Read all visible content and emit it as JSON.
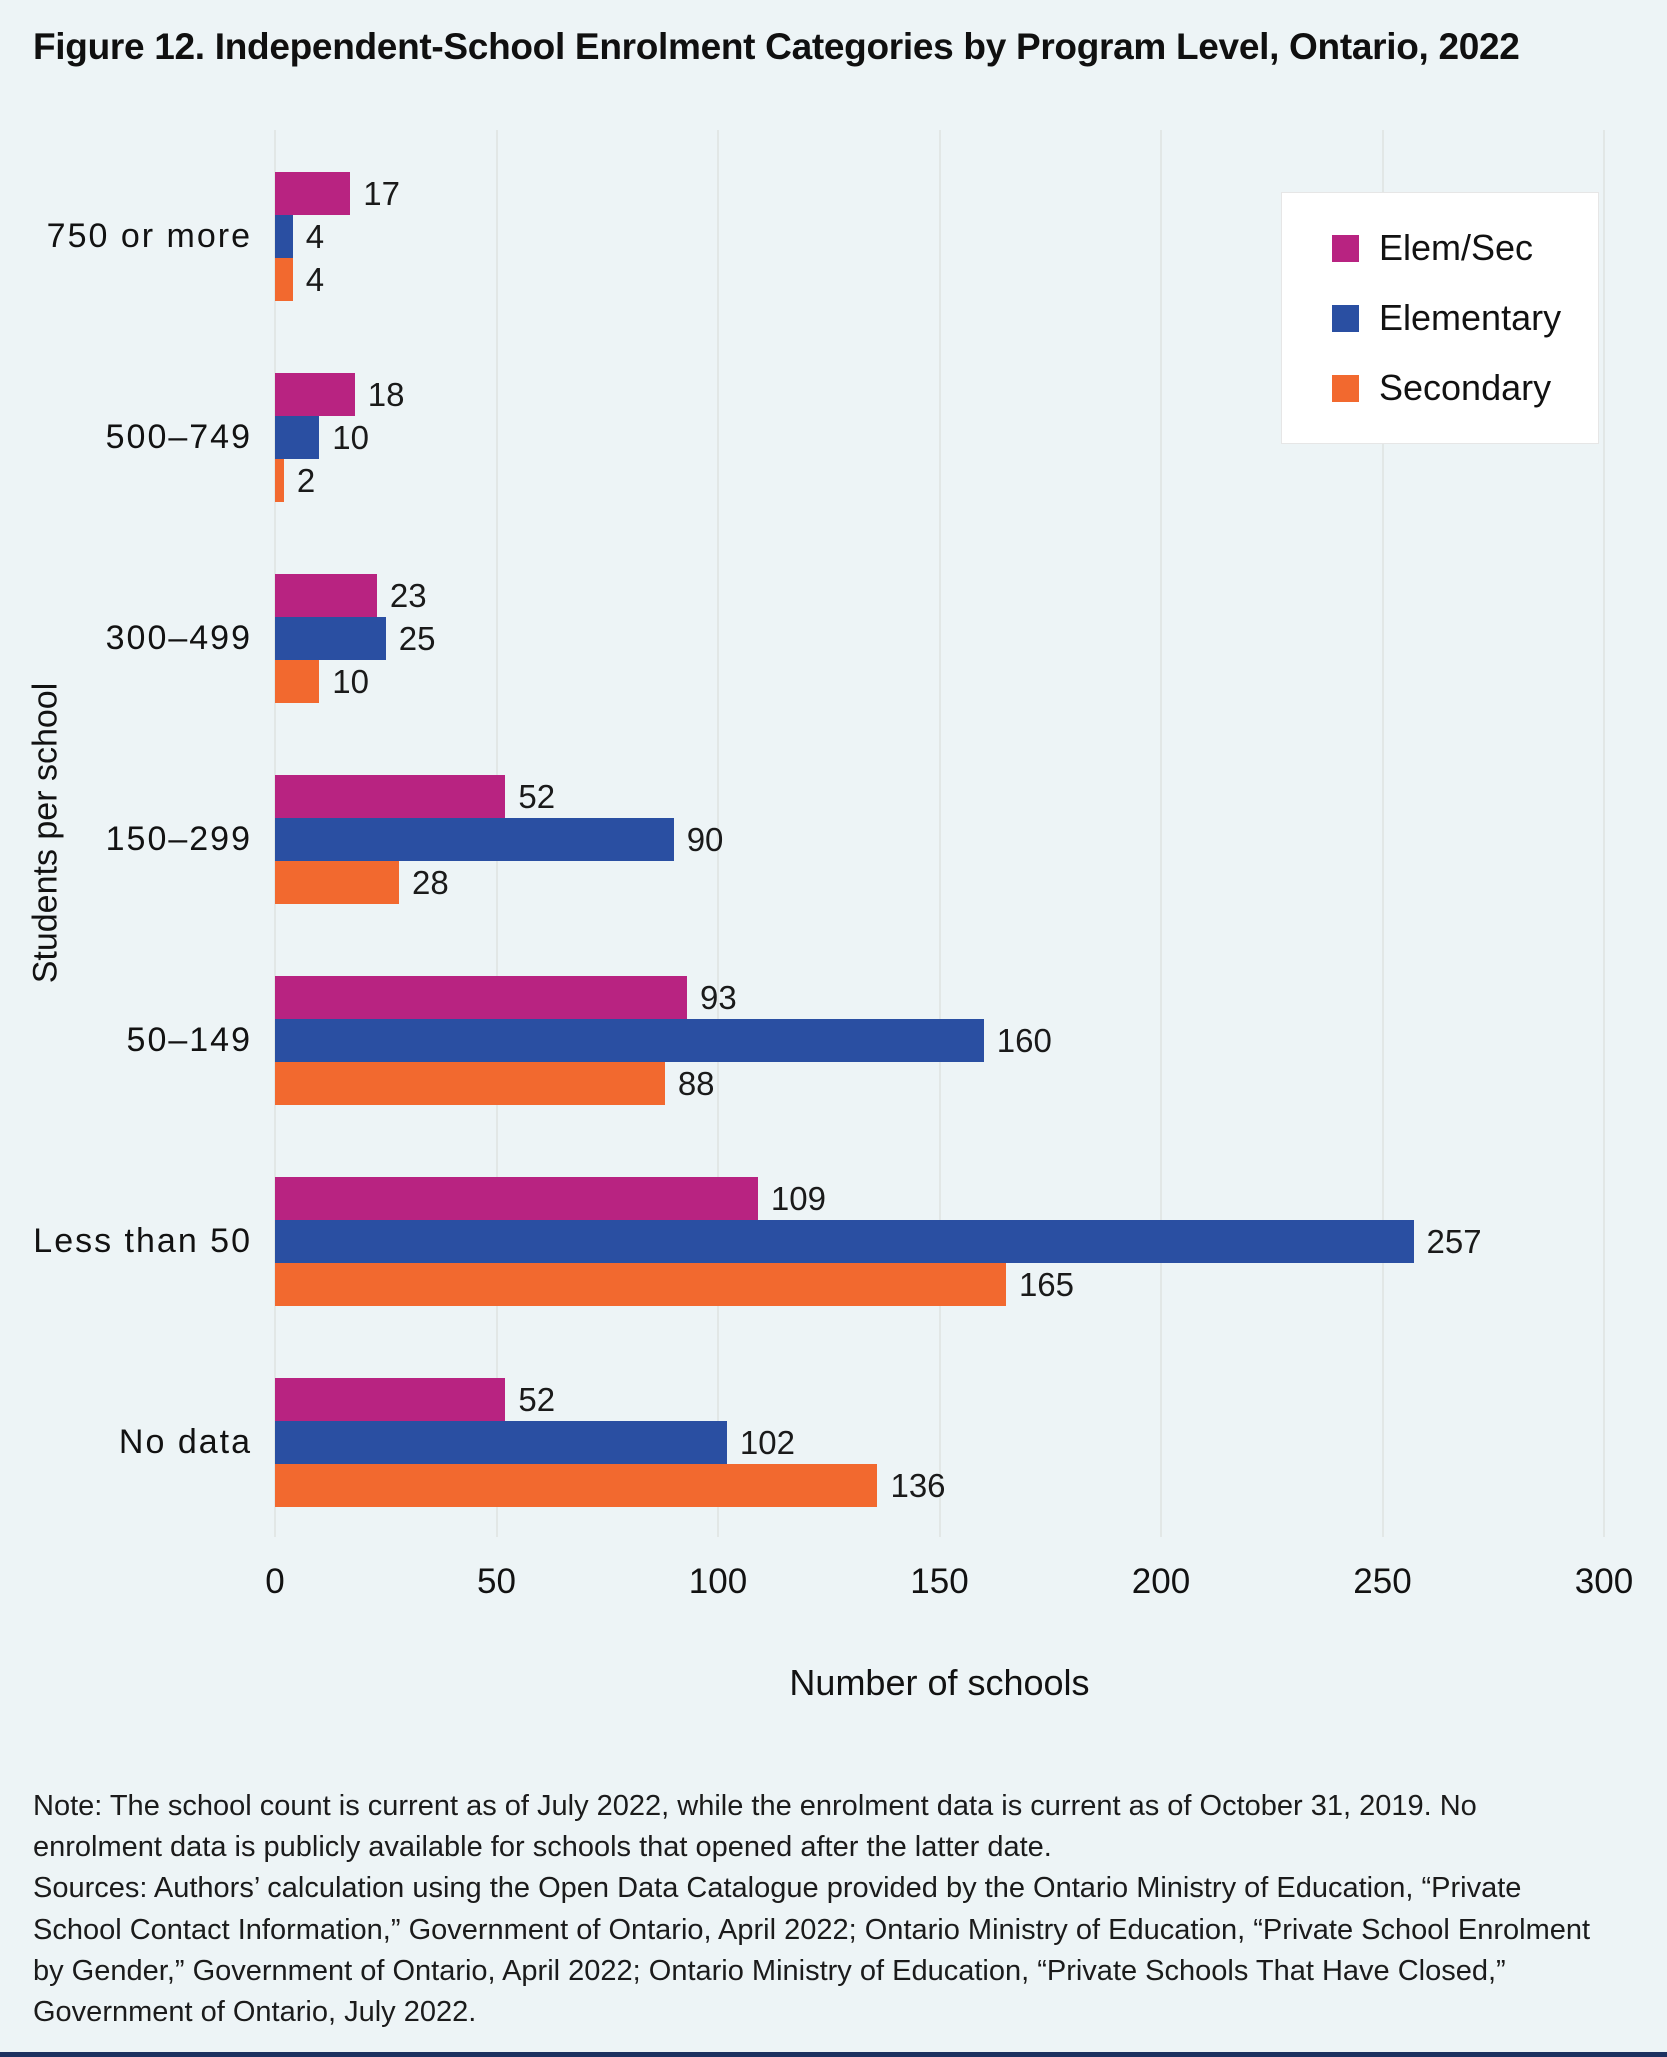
{
  "figure": {
    "title": "Figure 12. Independent-School Enrolment Categories by Program Level, Ontario, 2022",
    "note": "Note: The school count is current as of July 2022, while the enrolment data is current as of October 31, 2019. No enrolment data is publicly available for schools that opened after the latter date.",
    "sources": "Sources: Authors’ calculation using the Open Data Catalogue provided by the Ontario Ministry of Education, “Private School Contact Information,” Government of Ontario, April 2022; Ontario Ministry of Education, “Private School Enrolment by Gender,” Government of Ontario, April 2022; Ontario Ministry of Education, “Private Schools That Have Closed,” Government of Ontario, July 2022."
  },
  "chart_data": {
    "type": "bar",
    "orientation": "horizontal",
    "title": "Figure 12. Independent-School Enrolment Categories by Program Level, Ontario, 2022",
    "xlabel": "Number of schools",
    "ylabel": "Students per school",
    "xlim": [
      0,
      300
    ],
    "xticks": [
      0,
      50,
      100,
      150,
      200,
      250,
      300
    ],
    "grid": true,
    "legend_position": "top-right",
    "categories": [
      "750 or more",
      "500–749",
      "300–499",
      "150–299",
      "50–149",
      "Less than 50",
      "No data"
    ],
    "series": [
      {
        "name": "Elem/Sec",
        "color": "#b82381",
        "values": [
          17,
          18,
          23,
          52,
          93,
          109,
          52
        ]
      },
      {
        "name": "Elementary",
        "color": "#2a4fa2",
        "values": [
          4,
          10,
          25,
          90,
          160,
          257,
          102
        ]
      },
      {
        "name": "Secondary",
        "color": "#f2692f",
        "values": [
          4,
          2,
          10,
          28,
          88,
          165,
          136
        ]
      }
    ]
  },
  "colors": {
    "background": "#edf4f6",
    "gridline": "#e2e7e6",
    "legend_background": "#ffffff",
    "text": "#121212",
    "footer_bar": "#1d3160"
  }
}
